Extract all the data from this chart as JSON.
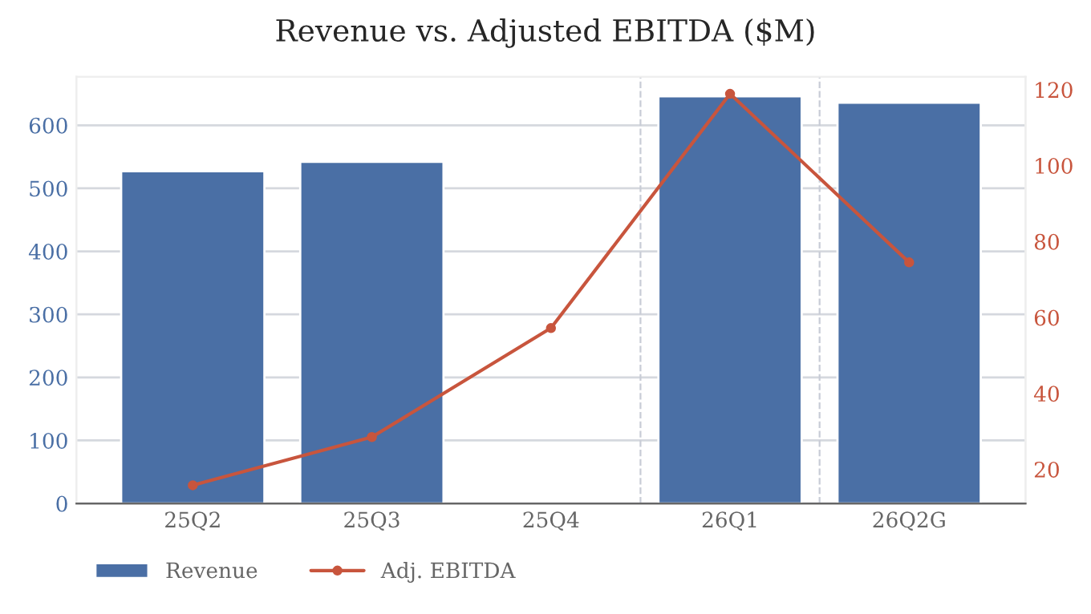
{
  "chart_data": {
    "type": "bar",
    "title": "Revenue vs. Adjusted EBITDA ($M)",
    "categories": [
      "25Q2",
      "25Q3",
      "25Q4",
      "26Q1",
      "26Q2G"
    ],
    "series": [
      {
        "name": "Revenue",
        "color": "#4a6fa5",
        "values": [
          527,
          542,
          null,
          646,
          636
        ]
      },
      {
        "name": "Adj. EBITDA",
        "type": "line",
        "axis": "y2",
        "color": "#c8553d",
        "marker": "circle",
        "line_style": "solid",
        "values": [
          15.8,
          28.5,
          57.2,
          118.9,
          74.5
        ]
      }
    ],
    "ylim": [
      0,
      677
    ],
    "yticks": [
      0,
      100,
      200,
      300,
      400,
      500,
      600
    ],
    "y2lim": [
      11,
      123.4
    ],
    "y2ticks": [
      20,
      40,
      60,
      80,
      100,
      120
    ],
    "grid": "y",
    "legend": "bottom left"
  }
}
